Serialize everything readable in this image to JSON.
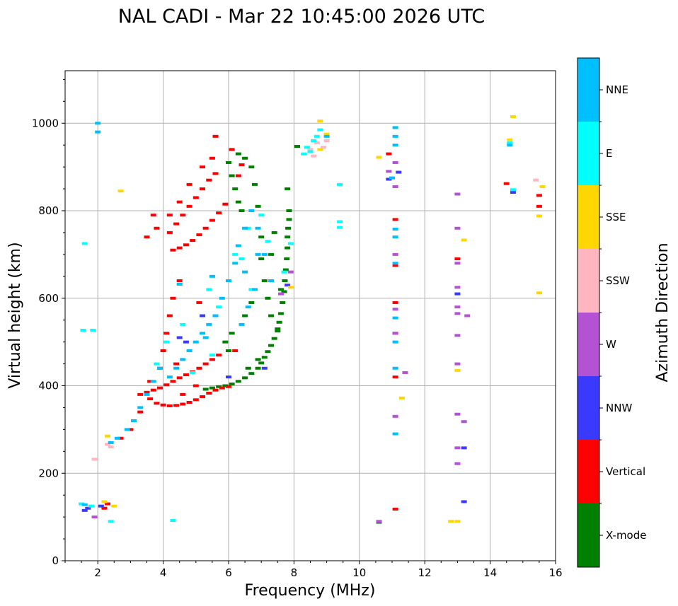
{
  "chart_data": {
    "type": "scatter",
    "title": "NAL CADI - Mar 22 10:45:00 2026 UTC",
    "xlabel": "Frequency (MHz)",
    "ylabel": "Virtual height (km)",
    "xlim": [
      1,
      16
    ],
    "ylim": [
      0,
      1120
    ],
    "xticks": [
      2,
      4,
      6,
      8,
      10,
      12,
      14,
      16
    ],
    "yticks": [
      0,
      200,
      400,
      600,
      800,
      1000
    ],
    "grid": true,
    "colorbar": {
      "label": "Azimuth Direction",
      "categories": [
        {
          "name": "X-mode",
          "color": "#008000"
        },
        {
          "name": "Vertical",
          "color": "#ff0000"
        },
        {
          "name": "NNW",
          "color": "#3a3aff"
        },
        {
          "name": "W",
          "color": "#b452d4"
        },
        {
          "name": "SSW",
          "color": "#ffb6c1"
        },
        {
          "name": "SSE",
          "color": "#ffd700"
        },
        {
          "name": "E",
          "color": "#00ffff"
        },
        {
          "name": "NNE",
          "color": "#00bfff"
        }
      ]
    },
    "series": [
      {
        "name": "X-mode",
        "points": [
          [
            5.3,
            392
          ],
          [
            5.5,
            395
          ],
          [
            5.7,
            398
          ],
          [
            5.9,
            400
          ],
          [
            6.1,
            404
          ],
          [
            6.3,
            410
          ],
          [
            6.5,
            418
          ],
          [
            6.7,
            428
          ],
          [
            6.9,
            440
          ],
          [
            7.0,
            452
          ],
          [
            7.1,
            465
          ],
          [
            7.2,
            478
          ],
          [
            7.3,
            492
          ],
          [
            7.4,
            508
          ],
          [
            7.5,
            525
          ],
          [
            7.55,
            545
          ],
          [
            7.6,
            565
          ],
          [
            7.65,
            590
          ],
          [
            7.7,
            615
          ],
          [
            7.72,
            640
          ],
          [
            7.75,
            665
          ],
          [
            7.78,
            690
          ],
          [
            7.8,
            715
          ],
          [
            7.8,
            740
          ],
          [
            7.82,
            760
          ],
          [
            7.85,
            780
          ],
          [
            7.85,
            800
          ],
          [
            7.8,
            850
          ],
          [
            7.5,
            530
          ],
          [
            7.3,
            560
          ],
          [
            7.2,
            600
          ],
          [
            7.1,
            640
          ],
          [
            7.0,
            690
          ],
          [
            7.0,
            740
          ],
          [
            6.9,
            810
          ],
          [
            6.8,
            860
          ],
          [
            6.7,
            900
          ],
          [
            6.5,
            920
          ],
          [
            6.3,
            930
          ],
          [
            6.0,
            910
          ],
          [
            6.1,
            880
          ],
          [
            6.2,
            850
          ],
          [
            6.3,
            820
          ],
          [
            6.4,
            800
          ],
          [
            6.9,
            460
          ],
          [
            6.6,
            440
          ],
          [
            6.0,
            480
          ],
          [
            5.9,
            500
          ],
          [
            6.1,
            520
          ],
          [
            6.5,
            560
          ],
          [
            6.7,
            590
          ],
          [
            7.3,
            700
          ],
          [
            7.4,
            750
          ],
          [
            7.6,
            620
          ],
          [
            8.1,
            947
          ],
          [
            10.6,
            88
          ]
        ]
      },
      {
        "name": "Vertical",
        "points": [
          [
            3.8,
            360
          ],
          [
            4.0,
            356
          ],
          [
            4.2,
            354
          ],
          [
            4.4,
            355
          ],
          [
            4.6,
            358
          ],
          [
            4.8,
            362
          ],
          [
            5.0,
            368
          ],
          [
            5.2,
            375
          ],
          [
            5.4,
            383
          ],
          [
            5.6,
            390
          ],
          [
            5.8,
            395
          ],
          [
            6.0,
            398
          ],
          [
            3.3,
            380
          ],
          [
            3.5,
            385
          ],
          [
            3.7,
            390
          ],
          [
            3.9,
            395
          ],
          [
            4.1,
            402
          ],
          [
            4.3,
            410
          ],
          [
            4.5,
            418
          ],
          [
            4.7,
            425
          ],
          [
            4.9,
            432
          ],
          [
            5.1,
            440
          ],
          [
            5.3,
            450
          ],
          [
            5.5,
            460
          ],
          [
            5.7,
            470
          ],
          [
            4.0,
            480
          ],
          [
            4.1,
            520
          ],
          [
            4.2,
            560
          ],
          [
            4.3,
            600
          ],
          [
            4.5,
            640
          ],
          [
            4.3,
            710
          ],
          [
            4.5,
            715
          ],
          [
            4.7,
            722
          ],
          [
            4.9,
            732
          ],
          [
            5.1,
            745
          ],
          [
            5.3,
            760
          ],
          [
            5.5,
            778
          ],
          [
            5.7,
            795
          ],
          [
            5.9,
            815
          ],
          [
            4.2,
            750
          ],
          [
            4.4,
            770
          ],
          [
            4.6,
            790
          ],
          [
            4.8,
            810
          ],
          [
            5.0,
            830
          ],
          [
            5.2,
            850
          ],
          [
            5.4,
            870
          ],
          [
            5.6,
            885
          ],
          [
            3.8,
            760
          ],
          [
            3.7,
            790
          ],
          [
            4.2,
            790
          ],
          [
            4.5,
            820
          ],
          [
            4.8,
            860
          ],
          [
            5.2,
            900
          ],
          [
            5.5,
            920
          ],
          [
            6.1,
            940
          ],
          [
            5.6,
            970
          ],
          [
            6.4,
            905
          ],
          [
            3.5,
            740
          ],
          [
            4.6,
            380
          ],
          [
            5.0,
            400
          ],
          [
            3.6,
            410
          ],
          [
            3.9,
            440
          ],
          [
            4.4,
            450
          ],
          [
            2.7,
            280
          ],
          [
            3.0,
            300
          ],
          [
            3.3,
            340
          ],
          [
            3.6,
            370
          ],
          [
            2.3,
            130
          ],
          [
            2.2,
            120
          ],
          [
            11.1,
            118
          ],
          [
            10.9,
            930
          ],
          [
            11.1,
            780
          ],
          [
            11.1,
            675
          ],
          [
            11.1,
            590
          ],
          [
            11.1,
            520
          ],
          [
            11.1,
            420
          ],
          [
            13.0,
            690
          ],
          [
            14.5,
            862
          ],
          [
            15.5,
            835
          ],
          [
            15.5,
            810
          ],
          [
            6.2,
            480
          ],
          [
            5.1,
            590
          ],
          [
            6.3,
            880
          ]
        ]
      },
      {
        "name": "NNW",
        "points": [
          [
            1.6,
            115
          ],
          [
            1.7,
            120
          ],
          [
            2.1,
            125
          ],
          [
            4.7,
            500
          ],
          [
            5.2,
            560
          ],
          [
            6.0,
            420
          ],
          [
            7.1,
            440
          ],
          [
            10.9,
            872
          ],
          [
            11.2,
            888
          ],
          [
            13.2,
            258
          ],
          [
            13.2,
            135
          ],
          [
            13.0,
            610
          ],
          [
            14.7,
            842
          ],
          [
            7.8,
            630
          ],
          [
            4.5,
            510
          ]
        ]
      },
      {
        "name": "W",
        "points": [
          [
            1.9,
            100
          ],
          [
            10.6,
            90
          ],
          [
            10.9,
            890
          ],
          [
            11.1,
            910
          ],
          [
            11.1,
            855
          ],
          [
            11.1,
            700
          ],
          [
            11.1,
            575
          ],
          [
            11.1,
            520
          ],
          [
            11.1,
            330
          ],
          [
            11.4,
            430
          ],
          [
            13.0,
            838
          ],
          [
            13.0,
            760
          ],
          [
            13.0,
            680
          ],
          [
            13.0,
            625
          ],
          [
            13.0,
            580
          ],
          [
            13.0,
            565
          ],
          [
            13.0,
            515
          ],
          [
            13.0,
            450
          ],
          [
            13.0,
            335
          ],
          [
            13.0,
            222
          ],
          [
            13.2,
            318
          ],
          [
            13.0,
            258
          ],
          [
            13.3,
            560
          ],
          [
            7.9,
            660
          ],
          [
            7.6,
            610
          ]
        ]
      },
      {
        "name": "SSW",
        "points": [
          [
            1.9,
            232
          ],
          [
            2.3,
            266
          ],
          [
            8.7,
            955
          ],
          [
            8.9,
            945
          ],
          [
            9.0,
            960
          ],
          [
            8.6,
            925
          ],
          [
            15.4,
            870
          ],
          [
            14.6,
            955
          ],
          [
            2.4,
            260
          ],
          [
            8.5,
            940
          ]
        ]
      },
      {
        "name": "SSE",
        "points": [
          [
            2.7,
            845
          ],
          [
            2.3,
            285
          ],
          [
            2.2,
            135
          ],
          [
            2.5,
            125
          ],
          [
            8.8,
            1005
          ],
          [
            9.0,
            975
          ],
          [
            8.8,
            940
          ],
          [
            10.6,
            922
          ],
          [
            11.3,
            372
          ],
          [
            13.0,
            90
          ],
          [
            12.8,
            90
          ],
          [
            13.0,
            435
          ],
          [
            13.2,
            733
          ],
          [
            14.7,
            1015
          ],
          [
            14.6,
            962
          ],
          [
            15.5,
            788
          ],
          [
            15.5,
            612
          ],
          [
            15.6,
            855
          ],
          [
            7.9,
            625
          ]
        ]
      },
      {
        "name": "E",
        "points": [
          [
            1.5,
            130
          ],
          [
            1.8,
            125
          ],
          [
            2.4,
            90
          ],
          [
            4.3,
            92
          ],
          [
            1.55,
            527
          ],
          [
            1.85,
            527
          ],
          [
            1.6,
            725
          ],
          [
            3.8,
            450
          ],
          [
            4.1,
            500
          ],
          [
            4.6,
            540
          ],
          [
            5.4,
            620
          ],
          [
            6.2,
            700
          ],
          [
            6.6,
            760
          ],
          [
            7.0,
            790
          ],
          [
            7.2,
            730
          ],
          [
            7.7,
            660
          ],
          [
            7.9,
            725
          ],
          [
            8.3,
            930
          ],
          [
            8.4,
            945
          ],
          [
            8.5,
            935
          ],
          [
            8.6,
            960
          ],
          [
            8.7,
            970
          ],
          [
            8.8,
            985
          ],
          [
            9.4,
            860
          ],
          [
            9.4,
            775
          ],
          [
            9.4,
            762
          ],
          [
            14.6,
            955
          ],
          [
            14.7,
            848
          ],
          [
            6.4,
            690
          ],
          [
            6.7,
            620
          ],
          [
            5.7,
            580
          ],
          [
            5.5,
            470
          ],
          [
            4.9,
            430
          ]
        ]
      },
      {
        "name": "NNE",
        "points": [
          [
            2.0,
            1000
          ],
          [
            2.0,
            980
          ],
          [
            1.6,
            128
          ],
          [
            2.4,
            270
          ],
          [
            2.6,
            280
          ],
          [
            2.9,
            300
          ],
          [
            3.1,
            320
          ],
          [
            3.3,
            350
          ],
          [
            3.5,
            380
          ],
          [
            3.7,
            410
          ],
          [
            3.9,
            440
          ],
          [
            4.2,
            420
          ],
          [
            4.4,
            440
          ],
          [
            4.6,
            460
          ],
          [
            4.8,
            480
          ],
          [
            5.0,
            500
          ],
          [
            5.2,
            520
          ],
          [
            5.4,
            540
          ],
          [
            5.6,
            560
          ],
          [
            5.8,
            600
          ],
          [
            6.0,
            640
          ],
          [
            6.2,
            680
          ],
          [
            6.3,
            720
          ],
          [
            6.5,
            760
          ],
          [
            6.7,
            800
          ],
          [
            6.9,
            760
          ],
          [
            7.1,
            700
          ],
          [
            6.8,
            620
          ],
          [
            6.6,
            580
          ],
          [
            6.4,
            540
          ],
          [
            5.5,
            650
          ],
          [
            5.3,
            510
          ],
          [
            6.5,
            660
          ],
          [
            6.9,
            700
          ],
          [
            7.3,
            640
          ],
          [
            9.0,
            970
          ],
          [
            11.1,
            990
          ],
          [
            11.1,
            970
          ],
          [
            11.1,
            950
          ],
          [
            11.0,
            875
          ],
          [
            11.1,
            758
          ],
          [
            11.1,
            740
          ],
          [
            11.1,
            680
          ],
          [
            11.1,
            555
          ],
          [
            11.1,
            500
          ],
          [
            11.1,
            440
          ],
          [
            11.1,
            290
          ],
          [
            14.6,
            950
          ],
          [
            4.5,
            632
          ]
        ]
      }
    ]
  }
}
